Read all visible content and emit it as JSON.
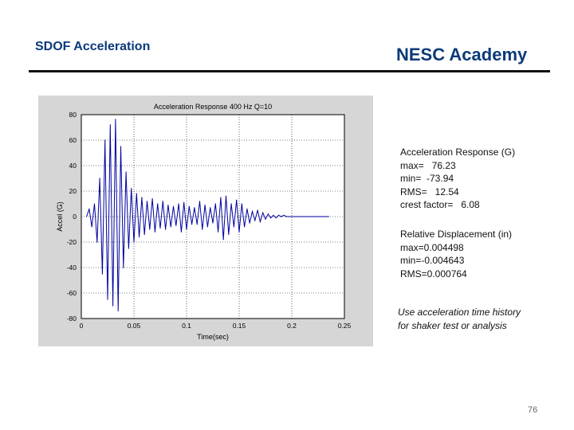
{
  "header": {
    "left_title": "SDOF Acceleration",
    "right_title": "NESC Academy"
  },
  "acceleration_stats": {
    "heading": "Acceleration Response (G)",
    "lines": [
      "max=   76.23",
      "min=  -73.94",
      "RMS=   12.54",
      "crest factor=   6.08"
    ]
  },
  "displacement_stats": {
    "heading": "Relative Displacement (in)",
    "lines": [
      "max=0.004498",
      "min=-0.004643",
      "RMS=0.000764"
    ]
  },
  "note": {
    "line1": "Use acceleration time history",
    "line2": "for shaker test or analysis"
  },
  "page_number": "76",
  "colors": {
    "header_text": "#0b3a7a",
    "series": "#0000a0"
  },
  "chart_data": {
    "type": "line",
    "title": "Acceleration Response 400 Hz  Q=10",
    "xlabel": "Time(sec)",
    "ylabel": "Accel (G)",
    "xlim": [
      0,
      0.25
    ],
    "ylim": [
      -80,
      80
    ],
    "x_ticks": [
      0,
      0.05,
      0.1,
      0.15,
      0.2,
      0.25
    ],
    "x_tick_labels": [
      "0",
      "0.05",
      "0.1",
      "0.15",
      "0.2",
      "0.25"
    ],
    "y_ticks": [
      80,
      60,
      40,
      20,
      0,
      -20,
      -40,
      -60,
      -80
    ],
    "y_tick_labels": [
      "80",
      "60",
      "40",
      "20",
      "0",
      "-20",
      "-40",
      "-60",
      "-80"
    ],
    "grid": true,
    "series": [
      {
        "x": [
          0.005,
          0.0075,
          0.01,
          0.0125,
          0.015,
          0.0175,
          0.02,
          0.0225,
          0.025,
          0.0275,
          0.03,
          0.0325,
          0.035,
          0.0375,
          0.04,
          0.0425,
          0.045,
          0.0475,
          0.05,
          0.0525,
          0.055,
          0.0575,
          0.06,
          0.0625,
          0.065,
          0.0675,
          0.07,
          0.0725,
          0.075,
          0.0775,
          0.08,
          0.0825,
          0.085,
          0.0875,
          0.09,
          0.0925,
          0.095,
          0.0975,
          0.1,
          0.1025,
          0.105,
          0.1075,
          0.11,
          0.1125,
          0.115,
          0.1175,
          0.12,
          0.1225,
          0.125,
          0.1275,
          0.13,
          0.1325,
          0.135,
          0.1375,
          0.14,
          0.1425,
          0.145,
          0.1475,
          0.15,
          0.1525,
          0.155,
          0.1575,
          0.16,
          0.1625,
          0.165,
          0.1675,
          0.17,
          0.1725,
          0.175,
          0.1775,
          0.18,
          0.1825,
          0.185,
          0.1875,
          0.19,
          0.1925,
          0.195,
          0.1975,
          0.2,
          0.2025,
          0.205,
          0.2075,
          0.21,
          0.2125,
          0.215,
          0.2175,
          0.22,
          0.2225,
          0.225,
          0.2275,
          0.23,
          0.2325,
          0.235
        ],
        "y": [
          0,
          6,
          -8,
          10,
          -20,
          30,
          -45,
          60,
          -65,
          72,
          -70,
          76.23,
          -73.94,
          55,
          -40,
          35,
          -25,
          22,
          -20,
          18,
          -16,
          15,
          -14,
          12,
          -10,
          14,
          -12,
          10,
          -9,
          12,
          -10,
          9,
          -8,
          8,
          -7,
          10,
          -12,
          11,
          -10,
          8,
          -6,
          7,
          -6,
          12,
          -10,
          9,
          -8,
          7,
          -5,
          10,
          -12,
          15,
          -18,
          16,
          -14,
          10,
          -8,
          13,
          -12,
          10,
          -8,
          6,
          -5,
          4,
          -3,
          5,
          -4,
          3,
          -2,
          2,
          -1,
          1,
          -1,
          1,
          0,
          1,
          0,
          0,
          0,
          0,
          0,
          0,
          0,
          0,
          0,
          0,
          0,
          0,
          0,
          0,
          0,
          0,
          0
        ]
      }
    ]
  }
}
